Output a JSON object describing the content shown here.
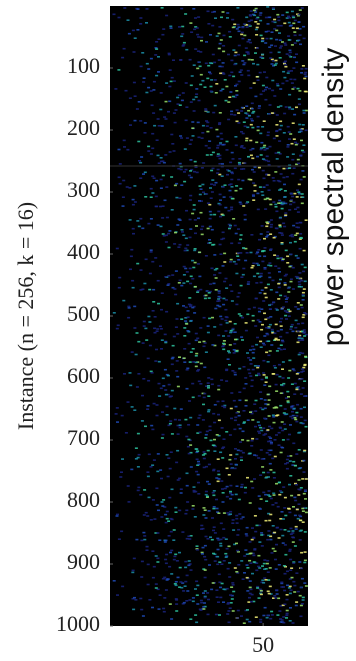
{
  "chart_data": {
    "type": "heatmap",
    "ylabel": "Instance (n = 256, k = 16)",
    "colorbar_label": "power spectral density",
    "xlim": [
      0.5,
      64.5
    ],
    "xticks": [
      50
    ],
    "ylim": [
      1000,
      0
    ],
    "yticks": [
      100,
      200,
      300,
      400,
      500,
      600,
      700,
      800,
      900,
      1000
    ],
    "background": "#000000",
    "colors": [
      "#1a237e",
      "#1e4bb8",
      "#1b8fa8",
      "#2ec4a0",
      "#9be26a",
      "#f4f27a"
    ]
  }
}
